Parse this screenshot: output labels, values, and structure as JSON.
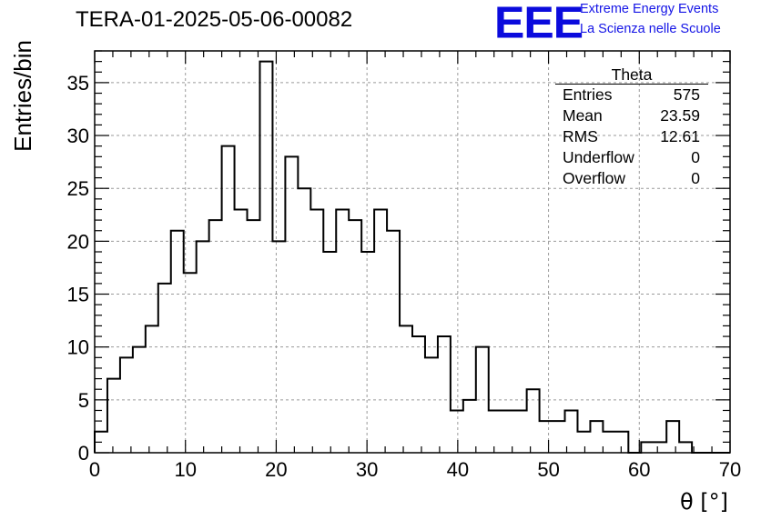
{
  "title": "TERA-01-2025-05-06-00082",
  "logo": {
    "mark": "EEE",
    "line1": "Extreme Energy Events",
    "line2": "La Scienza nelle Scuole",
    "color": "#1414e6"
  },
  "stats": {
    "title": "Theta",
    "rows": [
      {
        "label": "Entries",
        "value": "575"
      },
      {
        "label": "Mean",
        "value": "23.59"
      },
      {
        "label": "RMS",
        "value": "12.61"
      },
      {
        "label": "Underflow",
        "value": "0"
      },
      {
        "label": "Overflow",
        "value": "0"
      }
    ]
  },
  "chart_data": {
    "type": "bar",
    "style": "step-histogram",
    "title": "TERA-01-2025-05-06-00082",
    "xlabel": "θ [°]",
    "ylabel": "Entries/bin",
    "xlim": [
      0,
      70
    ],
    "ylim": [
      0,
      38
    ],
    "bin_width": 1.4,
    "bin_edges_start": 0,
    "x_ticks": [
      0,
      10,
      20,
      30,
      40,
      50,
      60,
      70
    ],
    "y_ticks": [
      0,
      5,
      10,
      15,
      20,
      25,
      30,
      35
    ],
    "values": [
      2,
      7,
      9,
      10,
      12,
      16,
      21,
      17,
      20,
      22,
      29,
      23,
      22,
      37,
      20,
      28,
      25,
      23,
      19,
      23,
      22,
      19,
      23,
      21,
      12,
      11,
      9,
      11,
      4,
      5,
      10,
      4,
      4,
      4,
      6,
      3,
      3,
      4,
      2,
      3,
      2,
      2,
      0,
      1,
      1,
      3,
      1,
      0,
      0,
      0
    ],
    "grid": true,
    "line_color": "#000000"
  }
}
